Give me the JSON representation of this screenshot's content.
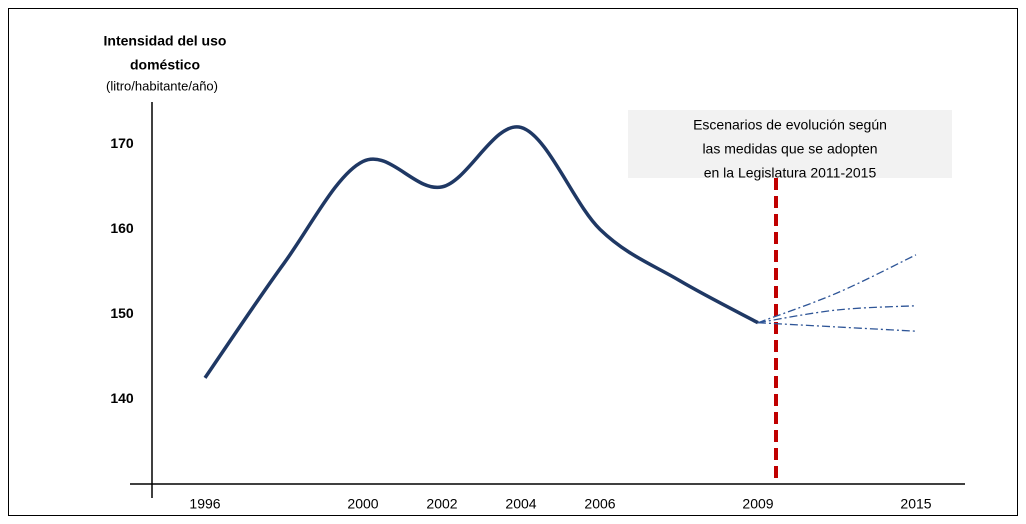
{
  "chart_data": {
    "type": "line",
    "y_label_lines": [
      "Intensidad del uso",
      "doméstico"
    ],
    "y_unit": "(litro/habitante/año)",
    "annotation": [
      "Escenarios de evolución según",
      "las medidas que se adopten",
      "en la Legislatura 2011-2015"
    ],
    "categories": [
      "1996",
      null,
      "2000",
      "2002",
      "2004",
      "2006",
      null,
      "2009",
      null,
      "2015"
    ],
    "series": [
      {
        "color": "#1f3864",
        "values": [
          142.5,
          156,
          168,
          165,
          172,
          160,
          154,
          149,
          null,
          null
        ]
      },
      {
        "color": "#2e5597",
        "dash": true,
        "values": [
          null,
          null,
          null,
          null,
          null,
          null,
          null,
          149,
          152.5,
          157
        ]
      },
      {
        "color": "#2e5597",
        "dash": true,
        "values": [
          null,
          null,
          null,
          null,
          null,
          null,
          null,
          149,
          150.5,
          151
        ]
      },
      {
        "color": "#2e5597",
        "dash": true,
        "values": [
          null,
          null,
          null,
          null,
          null,
          null,
          null,
          149,
          148.5,
          148
        ]
      }
    ],
    "annotation_line_color": "#c00000",
    "ylim": [
      130,
      175
    ],
    "yticks": [
      140,
      150,
      160,
      170
    ]
  }
}
